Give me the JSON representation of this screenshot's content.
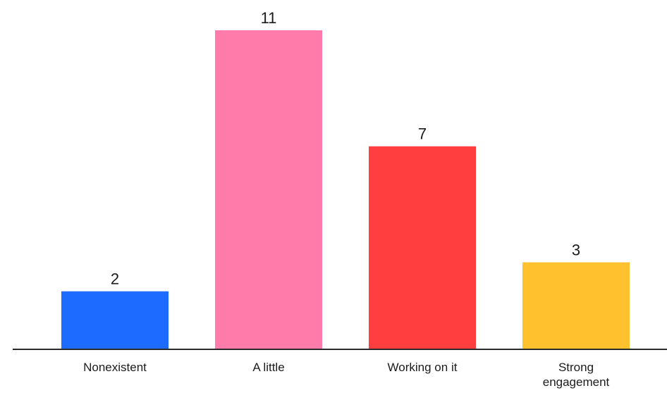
{
  "chart_data": {
    "type": "bar",
    "title": "",
    "xlabel": "",
    "ylabel": "",
    "categories": [
      "Nonexistent",
      "A little",
      "Working on it",
      "Strong engagement"
    ],
    "category_label_lines": [
      [
        "Nonexistent"
      ],
      [
        "A little"
      ],
      [
        "Working on it"
      ],
      [
        "Strong",
        "engagement"
      ]
    ],
    "values": [
      2,
      11,
      7,
      3
    ],
    "colors": [
      "#1E6BFF",
      "#FF7BAA",
      "#FF3F3F",
      "#FFC22E"
    ],
    "ylim": [
      0,
      11
    ],
    "grid": false,
    "legend": "none",
    "data_labels": true
  }
}
